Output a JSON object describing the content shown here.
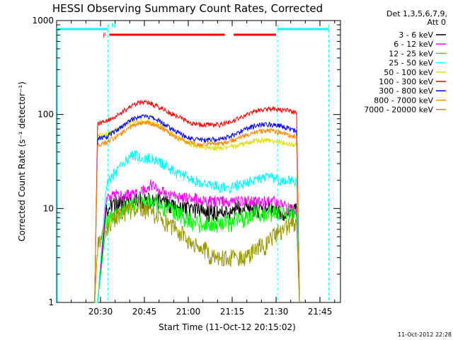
{
  "chart_data": {
    "type": "line",
    "title": "HESSI Observing Summary Count Rates, Corrected",
    "xlabel": "Start Time (11-Oct-12 20:15:02)",
    "ylabel": "Corrected Count Rate (s⁻¹ detector⁻¹)",
    "yscale": "log",
    "ylim": [
      1,
      1000
    ],
    "xlim_minutes": [
      0,
      97
    ],
    "xticks": [
      {
        "minute": 15,
        "label": "20:30"
      },
      {
        "minute": 30,
        "label": "20:45"
      },
      {
        "minute": 45,
        "label": "21:00"
      },
      {
        "minute": 60,
        "label": "21:15"
      },
      {
        "minute": 75,
        "label": "21:30"
      },
      {
        "minute": 90,
        "label": "21:45"
      }
    ],
    "yticks": [
      {
        "value": 1,
        "label": "1"
      },
      {
        "value": 10,
        "label": "10"
      },
      {
        "value": 100,
        "label": "100"
      },
      {
        "value": 1000,
        "label": "1000"
      }
    ],
    "legend_header": [
      "Det 1,3,5,6,7,9,",
      "Att 0"
    ],
    "legend_position": "right",
    "night_interval_minutes": [
      17.5,
      75.5
    ],
    "flags": [
      {
        "label": "F",
        "color": "#ff0000",
        "segments": [
          [
            18,
            57.5
          ],
          [
            60.5,
            75
          ]
        ]
      },
      {
        "label": "N",
        "color": "#00ffff",
        "segments": [
          [
            0,
            17.5
          ],
          [
            75.5,
            93
          ]
        ]
      }
    ],
    "x_minutes": [
      13,
      14,
      17,
      20,
      23,
      26,
      29,
      32,
      35,
      38,
      41,
      44,
      47,
      50,
      53,
      56,
      59,
      62,
      65,
      68,
      71,
      74,
      77,
      80,
      82,
      83
    ],
    "series": [
      {
        "name": "3 - 6 keV",
        "color": "#000000",
        "values": [
          1,
          1,
          10,
          11,
          12,
          12,
          12,
          12,
          12,
          11,
          10,
          10,
          10,
          9,
          9,
          9,
          9,
          10,
          10,
          10,
          10,
          10,
          9,
          9,
          10,
          1
        ]
      },
      {
        "name": "6 - 12 keV",
        "color": "#ff00ff",
        "values": [
          1,
          1,
          13,
          14,
          14,
          14,
          15,
          18,
          16,
          14,
          13,
          13,
          13,
          12,
          12,
          12,
          12,
          12,
          12,
          12,
          12,
          12,
          11,
          10,
          10,
          1
        ]
      },
      {
        "name": "12 - 25 keV",
        "color": "#00ff00",
        "values": [
          1,
          1,
          7,
          9,
          10,
          11,
          12,
          12,
          11,
          10,
          9,
          8,
          7,
          7,
          7,
          7,
          7,
          8,
          8,
          9,
          9,
          9,
          9,
          9,
          8,
          1
        ]
      },
      {
        "name": "25 - 50 keV",
        "color": "#00ffff",
        "values": [
          1,
          1,
          18,
          24,
          30,
          38,
          35,
          34,
          32,
          28,
          24,
          22,
          20,
          19,
          18,
          17,
          17,
          18,
          19,
          20,
          21,
          21,
          20,
          20,
          20,
          1
        ]
      },
      {
        "name": "50 - 100 keV",
        "color": "#dddd00",
        "values": [
          1,
          60,
          62,
          68,
          76,
          83,
          85,
          83,
          77,
          67,
          58,
          51,
          47,
          45,
          44,
          44,
          45,
          47,
          50,
          53,
          53,
          52,
          50,
          48,
          47,
          1
        ]
      },
      {
        "name": "100 - 300 keV",
        "color": "#ff0000",
        "values": [
          1,
          80,
          85,
          95,
          110,
          125,
          135,
          132,
          120,
          108,
          96,
          86,
          80,
          78,
          77,
          78,
          82,
          90,
          100,
          108,
          112,
          114,
          112,
          108,
          105,
          1
        ]
      },
      {
        "name": "300 - 800 keV",
        "color": "#0000ff",
        "values": [
          1,
          55,
          58,
          66,
          78,
          90,
          96,
          94,
          86,
          75,
          65,
          58,
          55,
          54,
          54,
          55,
          58,
          64,
          71,
          76,
          78,
          78,
          75,
          70,
          67,
          1
        ]
      },
      {
        "name": "800 - 7000 keV",
        "color": "#ff8800",
        "values": [
          1,
          48,
          50,
          57,
          66,
          76,
          82,
          81,
          74,
          65,
          57,
          52,
          49,
          48,
          48,
          49,
          51,
          56,
          61,
          65,
          67,
          67,
          64,
          60,
          58,
          1
        ]
      },
      {
        "name": "7000 - 20000 keV",
        "color": "#999900",
        "values": [
          1,
          4,
          6,
          8,
          9,
          10,
          10,
          9,
          8,
          7,
          6,
          5,
          4,
          4,
          3,
          3,
          3,
          3,
          3,
          4,
          4,
          5,
          6,
          7,
          7,
          1
        ]
      }
    ]
  },
  "timestamp": "11-Oct-2012 22:28"
}
